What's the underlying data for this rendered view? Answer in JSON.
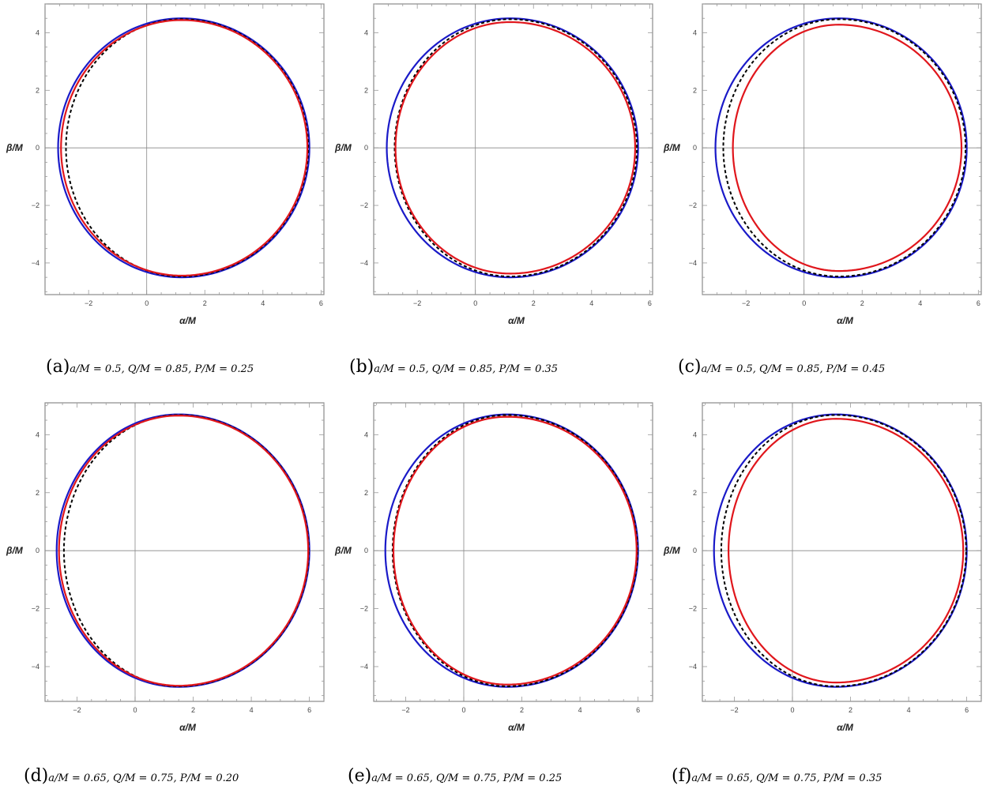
{
  "figure": {
    "panels": [
      {
        "id": "a",
        "caption_letter": "(a)",
        "caption_params": "a/M = 0.5, Q/M = 0.85, P/M = 0.25"
      },
      {
        "id": "b",
        "caption_letter": "(b)",
        "caption_params": "a/M = 0.5, Q/M = 0.85, P/M = 0.35"
      },
      {
        "id": "c",
        "caption_letter": "(c)",
        "caption_params": "a/M = 0.5, Q/M = 0.85, P/M = 0.45"
      },
      {
        "id": "d",
        "caption_letter": "(d)",
        "caption_params": "a/M = 0.65, Q/M = 0.75, P/M = 0.20"
      },
      {
        "id": "e",
        "caption_letter": "(e)",
        "caption_params": "a/M = 0.65, Q/M = 0.75, P/M = 0.25"
      },
      {
        "id": "f",
        "caption_letter": "(f)",
        "caption_params": "a/M = 0.65, Q/M = 0.75, P/M = 0.35"
      }
    ]
  },
  "chart_data": [
    {
      "type": "line",
      "panel": "a",
      "xlabel": "α/M",
      "ylabel": "β/M",
      "xlim": [
        -3.5,
        6.1
      ],
      "ylim": [
        -5.1,
        5.0
      ],
      "xticks": [
        -2,
        0,
        2,
        4,
        6
      ],
      "yticks": [
        -4,
        -2,
        0,
        2,
        4
      ],
      "grid": false,
      "axes_through_origin": true,
      "series": [
        {
          "color": "#1a1ac8",
          "dashed": false,
          "x_left": -3.05,
          "x_right": 5.6,
          "beta_max": 4.5,
          "x_at_top": 1.2
        },
        {
          "color": "#000000",
          "dashed": true,
          "x_left": -2.78,
          "x_right": 5.56,
          "beta_max": 4.47,
          "x_at_top": 1.2
        },
        {
          "color": "#e0161c",
          "dashed": false,
          "x_left": -2.95,
          "x_right": 5.53,
          "beta_max": 4.44,
          "x_at_top": 1.2
        }
      ]
    },
    {
      "type": "line",
      "panel": "b",
      "xlabel": "α/M",
      "ylabel": "β/M",
      "xlim": [
        -3.5,
        6.1
      ],
      "ylim": [
        -5.1,
        5.0
      ],
      "xticks": [
        -2,
        0,
        2,
        4,
        6
      ],
      "yticks": [
        -4,
        -2,
        0,
        2,
        4
      ],
      "grid": false,
      "axes_through_origin": true,
      "series": [
        {
          "color": "#1a1ac8",
          "dashed": false,
          "x_left": -3.05,
          "x_right": 5.6,
          "beta_max": 4.5,
          "x_at_top": 1.2
        },
        {
          "color": "#000000",
          "dashed": true,
          "x_left": -2.78,
          "x_right": 5.56,
          "beta_max": 4.47,
          "x_at_top": 1.2
        },
        {
          "color": "#e0161c",
          "dashed": false,
          "x_left": -2.75,
          "x_right": 5.5,
          "beta_max": 4.37,
          "x_at_top": 1.2
        }
      ]
    },
    {
      "type": "line",
      "panel": "c",
      "xlabel": "α/M",
      "ylabel": "β/M",
      "xlim": [
        -3.5,
        6.1
      ],
      "ylim": [
        -5.1,
        5.0
      ],
      "xticks": [
        -2,
        0,
        2,
        4,
        6
      ],
      "yticks": [
        -4,
        -2,
        0,
        2,
        4
      ],
      "grid": false,
      "axes_through_origin": true,
      "series": [
        {
          "color": "#1a1ac8",
          "dashed": false,
          "x_left": -3.05,
          "x_right": 5.6,
          "beta_max": 4.5,
          "x_at_top": 1.2
        },
        {
          "color": "#000000",
          "dashed": true,
          "x_left": -2.78,
          "x_right": 5.56,
          "beta_max": 4.47,
          "x_at_top": 1.2
        },
        {
          "color": "#e0161c",
          "dashed": false,
          "x_left": -2.45,
          "x_right": 5.42,
          "beta_max": 4.28,
          "x_at_top": 1.2
        }
      ]
    },
    {
      "type": "line",
      "panel": "d",
      "xlabel": "α/M",
      "ylabel": "β/M",
      "xlim": [
        -3.1,
        6.5
      ],
      "ylim": [
        -5.2,
        5.1
      ],
      "xticks": [
        -2,
        0,
        2,
        4,
        6
      ],
      "yticks": [
        -4,
        -2,
        0,
        2,
        4
      ],
      "grid": false,
      "axes_through_origin": true,
      "series": [
        {
          "color": "#1a1ac8",
          "dashed": false,
          "x_left": -2.7,
          "x_right": 6.0,
          "beta_max": 4.7,
          "x_at_top": 1.5
        },
        {
          "color": "#000000",
          "dashed": true,
          "x_left": -2.45,
          "x_right": 5.98,
          "beta_max": 4.68,
          "x_at_top": 1.5
        },
        {
          "color": "#e0161c",
          "dashed": false,
          "x_left": -2.62,
          "x_right": 5.96,
          "beta_max": 4.66,
          "x_at_top": 1.5
        }
      ]
    },
    {
      "type": "line",
      "panel": "e",
      "xlabel": "α/M",
      "ylabel": "β/M",
      "xlim": [
        -3.1,
        6.5
      ],
      "ylim": [
        -5.2,
        5.1
      ],
      "xticks": [
        -2,
        0,
        2,
        4,
        6
      ],
      "yticks": [
        -4,
        -2,
        0,
        2,
        4
      ],
      "grid": false,
      "axes_through_origin": true,
      "series": [
        {
          "color": "#1a1ac8",
          "dashed": false,
          "x_left": -2.7,
          "x_right": 6.0,
          "beta_max": 4.7,
          "x_at_top": 1.5
        },
        {
          "color": "#000000",
          "dashed": true,
          "x_left": -2.45,
          "x_right": 5.98,
          "beta_max": 4.68,
          "x_at_top": 1.5
        },
        {
          "color": "#e0161c",
          "dashed": false,
          "x_left": -2.42,
          "x_right": 5.95,
          "beta_max": 4.62,
          "x_at_top": 1.5
        }
      ]
    },
    {
      "type": "line",
      "panel": "f",
      "xlabel": "α/M",
      "ylabel": "β/M",
      "xlim": [
        -3.1,
        6.5
      ],
      "ylim": [
        -5.2,
        5.1
      ],
      "xticks": [
        -2,
        0,
        2,
        4,
        6
      ],
      "yticks": [
        -4,
        -2,
        0,
        2,
        4
      ],
      "grid": false,
      "axes_through_origin": true,
      "series": [
        {
          "color": "#1a1ac8",
          "dashed": false,
          "x_left": -2.7,
          "x_right": 6.0,
          "beta_max": 4.7,
          "x_at_top": 1.5
        },
        {
          "color": "#000000",
          "dashed": true,
          "x_left": -2.45,
          "x_right": 5.98,
          "beta_max": 4.68,
          "x_at_top": 1.5
        },
        {
          "color": "#e0161c",
          "dashed": false,
          "x_left": -2.2,
          "x_right": 5.88,
          "beta_max": 4.55,
          "x_at_top": 1.5
        }
      ]
    }
  ]
}
